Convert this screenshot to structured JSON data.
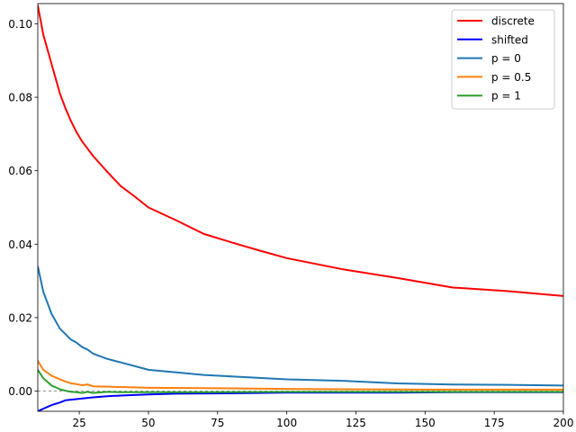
{
  "chart_data": {
    "type": "line",
    "title": "",
    "xlabel": "",
    "ylabel": "",
    "xlim": [
      10,
      200
    ],
    "ylim": [
      -0.0055,
      0.1055
    ],
    "xticks": [
      25,
      50,
      75,
      100,
      125,
      150,
      175,
      200
    ],
    "xtick_labels": [
      "25",
      "50",
      "75",
      "100",
      "125",
      "150",
      "175",
      "200"
    ],
    "yticks": [
      0.0,
      0.02,
      0.04,
      0.06,
      0.08,
      0.1
    ],
    "ytick_labels": [
      "0.00",
      "0.02",
      "0.04",
      "0.06",
      "0.08",
      "0.10"
    ],
    "grid": false,
    "legend_position": "top-right",
    "reference_line": {
      "y": 0,
      "style": "dashed",
      "color": "#808080"
    },
    "series": [
      {
        "name": "discrete",
        "color": "#ff0000",
        "x": [
          10,
          12,
          15,
          18,
          20,
          22,
          24,
          26,
          28,
          30,
          35,
          40,
          45,
          50,
          60,
          70,
          80,
          90,
          100,
          120,
          140,
          160,
          180,
          200
        ],
        "y": [
          0.105,
          0.097,
          0.089,
          0.081,
          0.077,
          0.0735,
          0.0705,
          0.068,
          0.066,
          0.064,
          0.0598,
          0.0558,
          0.053,
          0.05,
          0.0465,
          0.0428,
          0.0405,
          0.0383,
          0.0362,
          0.0332,
          0.0308,
          0.0282,
          0.0272,
          0.0259
        ]
      },
      {
        "name": "shifted",
        "color": "#0000ff",
        "x": [
          10,
          12,
          15,
          18,
          20,
          25,
          30,
          35,
          40,
          50,
          60,
          80,
          100,
          140,
          160,
          200
        ],
        "y": [
          -0.0055,
          -0.0048,
          -0.0038,
          -0.0031,
          -0.0025,
          -0.0021,
          -0.0017,
          -0.0014,
          -0.0012,
          -0.0009,
          -0.0007,
          -0.0006,
          -0.0004,
          -0.0004,
          -0.0003,
          -0.0003
        ]
      },
      {
        "name": "p = 0",
        "color": "#1f77b4",
        "x": [
          10,
          12,
          15,
          18,
          20,
          22,
          24,
          26,
          28,
          30,
          35,
          40,
          50,
          60,
          70,
          80,
          100,
          120,
          140,
          160,
          180,
          200
        ],
        "y": [
          0.034,
          0.027,
          0.021,
          0.017,
          0.0155,
          0.014,
          0.0132,
          0.012,
          0.0113,
          0.0102,
          0.0088,
          0.0078,
          0.0058,
          0.0051,
          0.0044,
          0.004,
          0.0032,
          0.0028,
          0.0021,
          0.0018,
          0.0017,
          0.0015
        ]
      },
      {
        "name": "p = 0.5",
        "color": "#ff7f0e",
        "x": [
          10,
          12,
          15,
          18,
          20,
          22,
          24,
          26,
          28,
          30,
          40,
          50,
          70,
          100,
          150,
          200
        ],
        "y": [
          0.0082,
          0.0058,
          0.0042,
          0.0032,
          0.0026,
          0.0021,
          0.0019,
          0.0016,
          0.0018,
          0.0013,
          0.0011,
          0.0009,
          0.0008,
          0.0006,
          0.0004,
          0.0004
        ]
      },
      {
        "name": "p = 1",
        "color": "#2ca02c",
        "x": [
          10,
          12,
          15,
          18,
          20,
          22,
          24,
          26,
          28,
          30,
          35,
          40,
          50,
          70,
          100,
          150,
          200
        ],
        "y": [
          0.0058,
          0.0035,
          0.0015,
          0.0005,
          0.0001,
          -0.0002,
          -0.0003,
          -0.0005,
          -0.0002,
          -0.0005,
          -0.0002,
          -0.0003,
          -0.0003,
          -0.0003,
          -0.0002,
          -0.0002,
          -0.0002
        ]
      }
    ]
  }
}
